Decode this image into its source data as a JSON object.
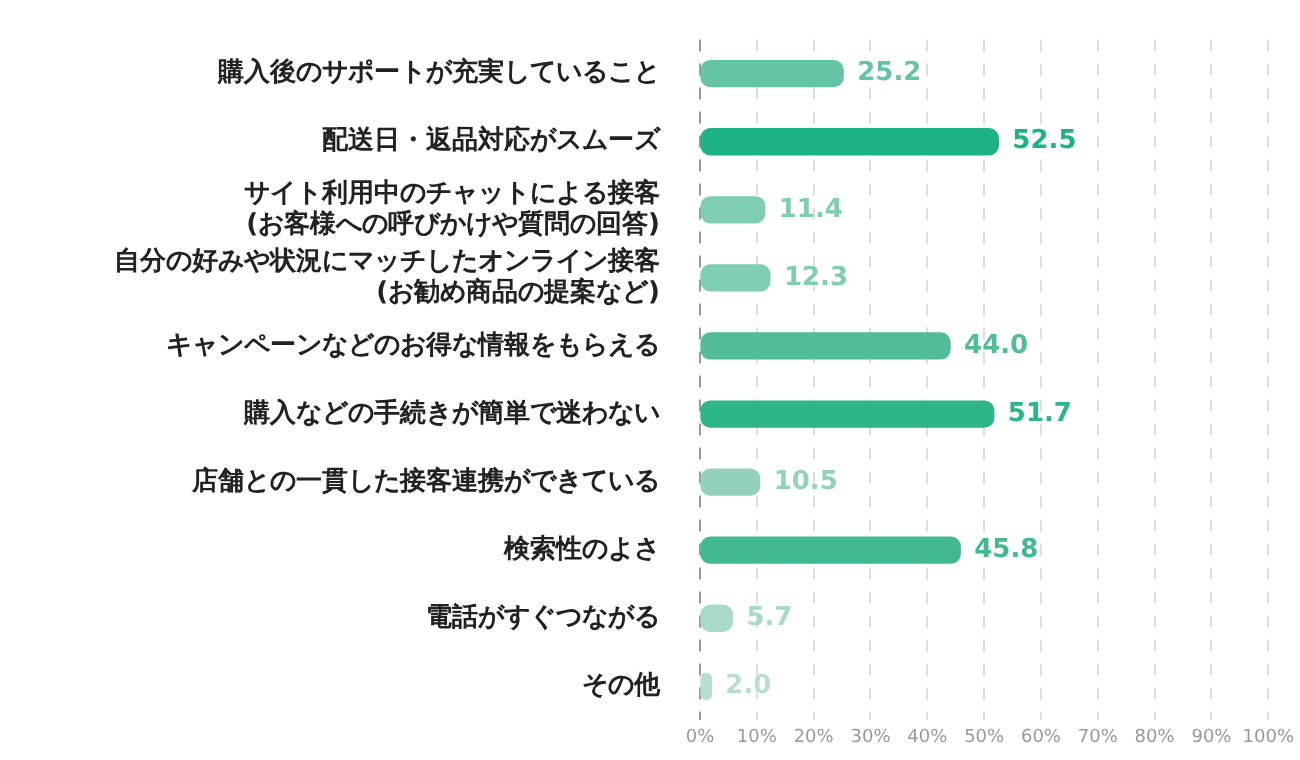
{
  "chart_data": {
    "type": "bar",
    "orientation": "horizontal",
    "categories": [
      "購入後のサポートが充実していること",
      "配送日・返品対応がスムーズ",
      "サイト利用中のチャットによる接客\n(お客様への呼びかけや質問の回答)",
      "自分の好みや状況にマッチしたオンライン接客\n(お勧め商品の提案など)",
      "キャンペーンなどのお得な情報をもらえる",
      "購入などの手続きが簡単で迷わない",
      "店舗との一貫した接客連携ができている",
      "検索性のよさ",
      "電話がすぐつながる",
      "その他"
    ],
    "values": [
      25.2,
      52.5,
      11.4,
      12.3,
      44.0,
      51.7,
      10.5,
      45.8,
      5.7,
      2.0
    ],
    "value_labels": [
      "25.2",
      "52.5",
      "11.4",
      "12.3",
      "44.0",
      "51.7",
      "10.5",
      "45.8",
      "5.7",
      "2.0"
    ],
    "colors": [
      "#66c4a6",
      "#1db387",
      "#7fcdb3",
      "#7fcdb3",
      "#52bc98",
      "#2db68a",
      "#93d0bd",
      "#40b992",
      "#a8d9c9",
      "#b8ddd1"
    ],
    "xlim": [
      0,
      100
    ],
    "xticks": [
      {
        "value": 0,
        "label": "0%"
      },
      {
        "value": 10,
        "label": "10%"
      },
      {
        "value": 20,
        "label": "20%"
      },
      {
        "value": 30,
        "label": "30%"
      },
      {
        "value": 40,
        "label": "40%"
      },
      {
        "value": 50,
        "label": "50%"
      },
      {
        "value": 60,
        "label": "60%"
      },
      {
        "value": 70,
        "label": "70%"
      },
      {
        "value": 80,
        "label": "80%"
      },
      {
        "value": 90,
        "label": "90%"
      },
      {
        "value": 100,
        "label": "100%"
      }
    ],
    "grid": "x",
    "legend": false
  }
}
